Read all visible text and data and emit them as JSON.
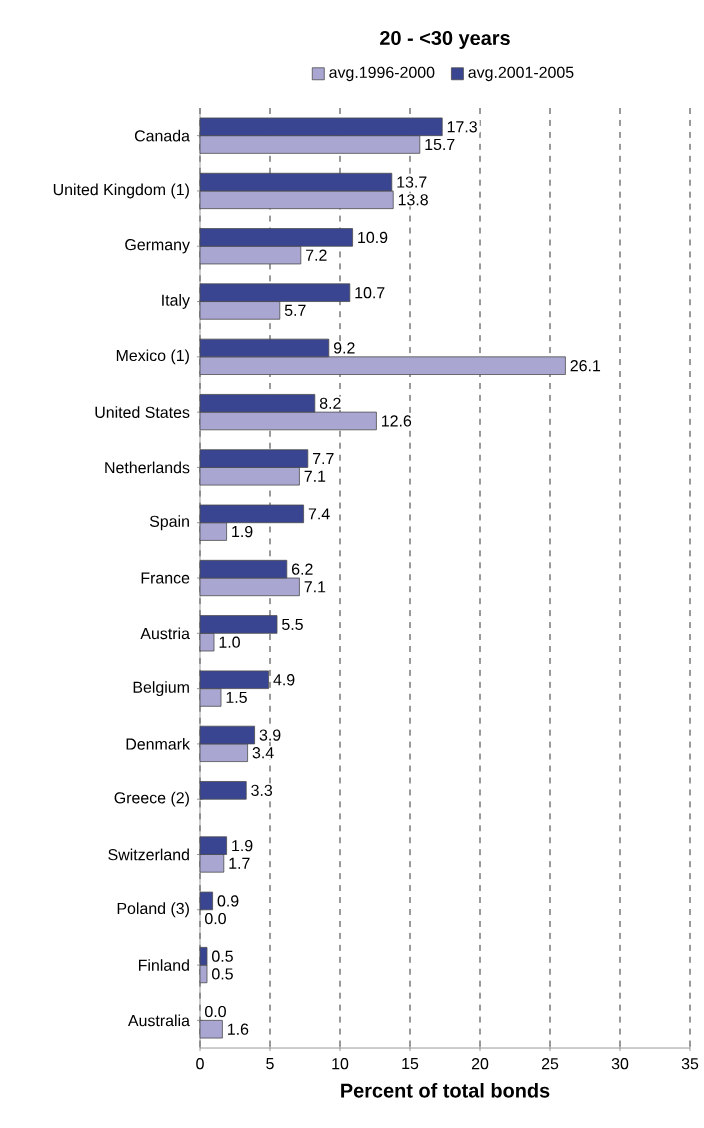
{
  "chart_data": {
    "type": "bar",
    "orientation": "horizontal",
    "title": "20 - <30 years",
    "xlabel": "Percent of total bonds",
    "categories": [
      "Canada",
      "United Kingdom (1)",
      "Germany",
      "Italy",
      "Mexico (1)",
      "United States",
      "Netherlands",
      "Spain",
      "France",
      "Austria",
      "Belgium",
      "Denmark",
      "Greece (2)",
      "Switzerland",
      "Poland (3)",
      "Finland",
      "Australia"
    ],
    "series": [
      {
        "name": "avg.1996-2000",
        "color": "#a9a7d2",
        "values": [
          15.7,
          13.8,
          7.2,
          5.7,
          26.1,
          12.6,
          7.1,
          1.9,
          7.1,
          1.0,
          1.5,
          3.4,
          null,
          1.7,
          0.0,
          0.5,
          1.6
        ],
        "value_labels": [
          "15.7",
          "13.8",
          "7.2",
          "5.7",
          "26.1",
          "12.6",
          "7.1",
          "1.9",
          "7.1",
          "1.0",
          "1.5",
          "3.4",
          null,
          "1.7",
          "0.0",
          "0.5",
          "1.6"
        ]
      },
      {
        "name": "avg.2001-2005",
        "color": "#3a4592",
        "values": [
          17.3,
          13.7,
          10.9,
          10.7,
          9.2,
          8.2,
          7.7,
          7.4,
          6.2,
          5.5,
          4.9,
          3.9,
          3.3,
          1.9,
          0.9,
          0.5,
          0.0
        ],
        "value_labels": [
          "17.3",
          "13.7",
          "10.9",
          "10.7",
          "9.2",
          "8.2",
          "7.7",
          "7.4",
          "6.2",
          "5.5",
          "4.9",
          "3.9",
          "3.3",
          "1.9",
          "0.9",
          "0.5",
          "0.0"
        ]
      }
    ],
    "xlim": [
      0,
      35
    ],
    "xticks": [
      0,
      5,
      10,
      15,
      20,
      25,
      30,
      35
    ],
    "grid": "x",
    "legend": "top"
  }
}
